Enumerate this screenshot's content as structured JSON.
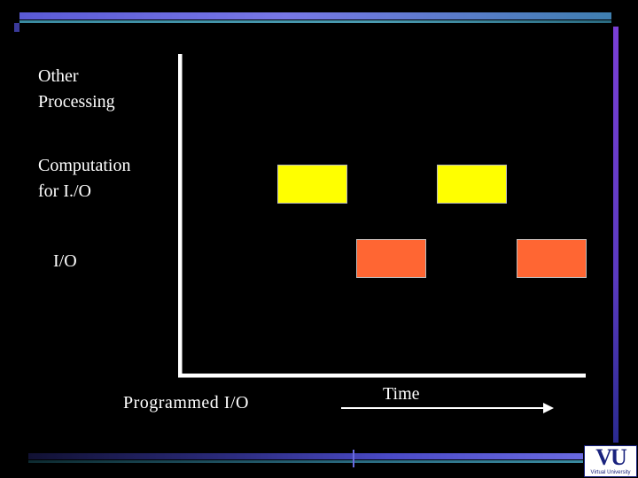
{
  "labels": {
    "other_processing": [
      "Other",
      "Processing"
    ],
    "computation_for_io": [
      "Computation",
      "for I./O"
    ],
    "io": "I/O",
    "title": "Programmed I/O",
    "time": "Time"
  },
  "blocks": {
    "computation": [
      {
        "label": ""
      },
      {
        "label": ""
      }
    ],
    "io": [
      {
        "label": ""
      },
      {
        "label": ""
      }
    ]
  },
  "colors": {
    "background": "#000000",
    "computation_block": "#ffff00",
    "io_block": "#ff6633",
    "text": "#ffffff"
  },
  "logo": {
    "mark": "VU",
    "caption": "Virtual University"
  }
}
